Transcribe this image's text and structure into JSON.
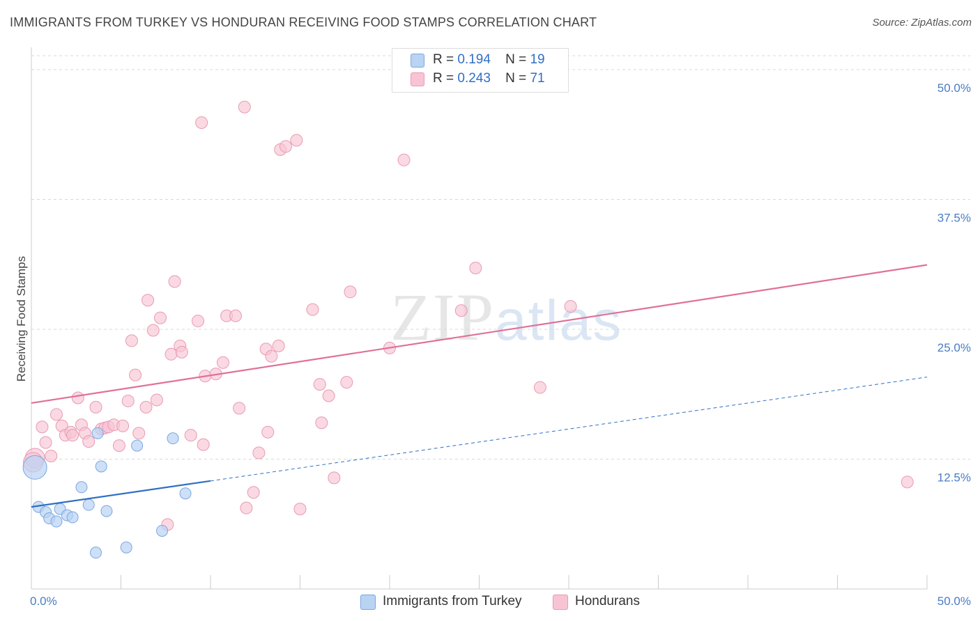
{
  "title": "IMMIGRANTS FROM TURKEY VS HONDURAN RECEIVING FOOD STAMPS CORRELATION CHART",
  "source": "Source: ZipAtlas.com",
  "watermark": {
    "zip": "ZIP",
    "atlas": "atlas"
  },
  "colors": {
    "turkey_fill": "#b9d3f3",
    "turkey_stroke": "#7aa6e0",
    "turkey_line": "#2f6fc4",
    "honduran_fill": "#f8c4d4",
    "honduran_stroke": "#e99ab3",
    "honduran_line": "#e07098",
    "grid": "#d8d8d8",
    "tick_label": "#4a7cc4"
  },
  "legend": {
    "rows": [
      {
        "r_label": "R =",
        "r_value": "0.194",
        "n_label": "N =",
        "n_value": "19"
      },
      {
        "r_label": "R =",
        "r_value": "0.243",
        "n_label": "N =",
        "n_value": "71"
      }
    ]
  },
  "bottom_legend": {
    "turkey": "Immigrants from Turkey",
    "honduran": "Hondurans"
  },
  "chart_data": {
    "type": "scatter",
    "title": "IMMIGRANTS FROM TURKEY VS HONDURAN RECEIVING FOOD STAMPS CORRELATION CHART",
    "xlabel": "",
    "ylabel": "Receiving Food Stamps",
    "xlim": [
      0,
      50
    ],
    "ylim": [
      0,
      50
    ],
    "x_tick_labels": [
      "0.0%",
      "50.0%"
    ],
    "y_ticks": [
      12.5,
      25.0,
      37.5,
      50.0
    ],
    "y_tick_labels": [
      "12.5%",
      "25.0%",
      "37.5%",
      "50.0%"
    ],
    "grid": true,
    "series": [
      {
        "name": "Immigrants from Turkey",
        "R": 0.194,
        "N": 19,
        "points": [
          [
            0.2,
            11.7
          ],
          [
            0.4,
            7.9
          ],
          [
            0.8,
            7.4
          ],
          [
            1.0,
            6.8
          ],
          [
            1.4,
            6.5
          ],
          [
            1.6,
            7.7
          ],
          [
            2.0,
            7.1
          ],
          [
            2.3,
            6.9
          ],
          [
            2.8,
            9.8
          ],
          [
            3.2,
            8.1
          ],
          [
            3.6,
            3.5
          ],
          [
            3.9,
            11.8
          ],
          [
            4.2,
            7.5
          ],
          [
            5.3,
            4.0
          ],
          [
            5.9,
            13.8
          ],
          [
            7.3,
            5.6
          ],
          [
            7.9,
            14.5
          ],
          [
            8.6,
            9.2
          ],
          [
            3.7,
            15.0
          ]
        ],
        "trend": {
          "x0": 0.0,
          "y0": 7.9,
          "x1": 10.0,
          "y1": 10.4,
          "dashed_to": {
            "x": 50.0,
            "y": 20.4
          }
        }
      },
      {
        "name": "Hondurans",
        "R": 0.243,
        "N": 71,
        "points": [
          [
            0.2,
            12.6
          ],
          [
            0.6,
            15.6
          ],
          [
            0.8,
            14.1
          ],
          [
            1.1,
            12.8
          ],
          [
            1.4,
            16.8
          ],
          [
            1.7,
            15.7
          ],
          [
            1.9,
            14.8
          ],
          [
            2.2,
            15.1
          ],
          [
            2.3,
            14.8
          ],
          [
            2.6,
            18.4
          ],
          [
            2.8,
            15.8
          ],
          [
            3.0,
            15.0
          ],
          [
            3.2,
            14.2
          ],
          [
            3.6,
            17.5
          ],
          [
            3.9,
            15.4
          ],
          [
            4.1,
            15.5
          ],
          [
            4.3,
            15.6
          ],
          [
            4.6,
            15.8
          ],
          [
            4.9,
            13.8
          ],
          [
            5.1,
            15.7
          ],
          [
            5.4,
            18.1
          ],
          [
            5.6,
            23.9
          ],
          [
            5.8,
            20.6
          ],
          [
            6.0,
            15.0
          ],
          [
            6.4,
            17.5
          ],
          [
            6.5,
            27.8
          ],
          [
            6.8,
            24.9
          ],
          [
            7.0,
            18.2
          ],
          [
            7.2,
            26.1
          ],
          [
            7.6,
            6.2
          ],
          [
            7.8,
            22.6
          ],
          [
            8.0,
            29.6
          ],
          [
            8.3,
            23.4
          ],
          [
            8.4,
            22.8
          ],
          [
            8.9,
            14.8
          ],
          [
            9.3,
            25.8
          ],
          [
            9.5,
            44.9
          ],
          [
            9.6,
            13.9
          ],
          [
            9.7,
            20.5
          ],
          [
            10.3,
            20.7
          ],
          [
            10.7,
            21.8
          ],
          [
            10.9,
            26.3
          ],
          [
            11.4,
            26.3
          ],
          [
            11.6,
            17.4
          ],
          [
            11.9,
            46.4
          ],
          [
            12.0,
            7.8
          ],
          [
            12.4,
            9.3
          ],
          [
            12.7,
            13.1
          ],
          [
            13.1,
            23.1
          ],
          [
            13.2,
            15.1
          ],
          [
            13.4,
            22.4
          ],
          [
            13.8,
            23.4
          ],
          [
            13.9,
            42.3
          ],
          [
            14.2,
            42.6
          ],
          [
            14.8,
            43.2
          ],
          [
            15.0,
            7.7
          ],
          [
            15.7,
            26.9
          ],
          [
            16.1,
            19.7
          ],
          [
            16.2,
            16.0
          ],
          [
            16.6,
            18.6
          ],
          [
            16.9,
            10.7
          ],
          [
            17.6,
            19.9
          ],
          [
            17.8,
            28.6
          ],
          [
            20.0,
            23.2
          ],
          [
            20.8,
            41.3
          ],
          [
            24.0,
            26.8
          ],
          [
            24.8,
            30.9
          ],
          [
            28.4,
            19.4
          ],
          [
            30.1,
            27.2
          ],
          [
            48.9,
            10.3
          ],
          [
            0.1,
            12.2
          ]
        ],
        "trend": {
          "x0": 0.0,
          "y0": 17.9,
          "x1": 50.0,
          "y1": 31.2
        }
      }
    ]
  }
}
